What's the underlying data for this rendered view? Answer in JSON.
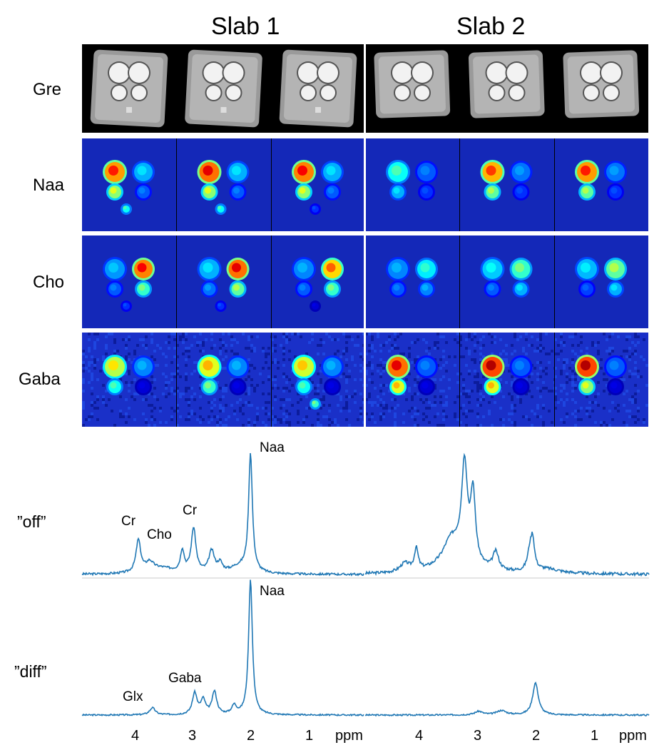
{
  "figure": {
    "slab_titles": [
      "Slab 1",
      "Slab 2"
    ],
    "row_labels": [
      "Gre",
      "Naa",
      "Cho",
      "Gaba"
    ],
    "spectra": {
      "off_label": "”off”",
      "diff_label": "”diff”",
      "off_peaks": {
        "cr1": "Cr",
        "cho": "Cho",
        "cr2": "Cr",
        "naa": "Naa"
      },
      "diff_peaks": {
        "glx": "Glx",
        "gaba": "Gaba",
        "naa": "Naa"
      },
      "axis_ticks_left": [
        "4",
        "3",
        "2",
        "1"
      ],
      "axis_ticks_right": [
        "4",
        "3",
        "2",
        "1"
      ],
      "axis_unit": "ppm"
    },
    "colors": {
      "line": "#1f77b4",
      "map_bg": "#0a1aa8",
      "gre_bg": "#000000"
    }
  }
}
